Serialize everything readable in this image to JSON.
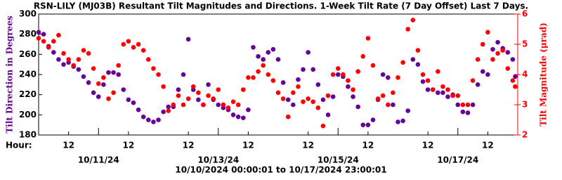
{
  "chart_data": {
    "type": "scatter",
    "title": "RSN-LILY (MJ03B) Resultant Tilt Magnitudes and Directions. 1-Week Tilt Rate (7 Day Offset) Last 7 Days.",
    "xlabel": "Hour:",
    "ylabel": "Tilt Direction in Degrees",
    "y2label": "Tilt Magnitude (μrad)",
    "footer": "10/10/2024 00:00:01 to 10/17/2024 23:00:01",
    "xlim": [
      0,
      192
    ],
    "xticks": [
      {
        "value": 12,
        "label": "12"
      },
      {
        "value": 36,
        "label": "12"
      },
      {
        "value": 60,
        "label": "12"
      },
      {
        "value": 84,
        "label": "12"
      },
      {
        "value": 108,
        "label": "12"
      },
      {
        "value": 132,
        "label": "12"
      },
      {
        "value": 156,
        "label": "12"
      },
      {
        "value": 180,
        "label": "12"
      }
    ],
    "xdateticks": [
      {
        "value": 24,
        "label": "10/11/24"
      },
      {
        "value": 72,
        "label": "10/13/24"
      },
      {
        "value": 120,
        "label": "10/15/24"
      },
      {
        "value": 168,
        "label": "10/17/24"
      }
    ],
    "ylim": [
      180,
      300
    ],
    "yticks": [
      180,
      200,
      220,
      240,
      260,
      280,
      300
    ],
    "y2lim": [
      2,
      6
    ],
    "y2ticks": [
      2,
      3,
      4,
      5,
      6
    ],
    "x": [
      0,
      2,
      4,
      6,
      8,
      10,
      12,
      14,
      16,
      18,
      20,
      22,
      24,
      26,
      28,
      30,
      32,
      34,
      36,
      38,
      40,
      42,
      44,
      46,
      48,
      50,
      52,
      54,
      56,
      58,
      60,
      62,
      64,
      66,
      68,
      70,
      72,
      74,
      76,
      78,
      80,
      82,
      84,
      86,
      88,
      90,
      92,
      94,
      96,
      98,
      100,
      102,
      104,
      106,
      108,
      110,
      112,
      114,
      116,
      118,
      120,
      122,
      124,
      126,
      128,
      130,
      132,
      134,
      136,
      138,
      140,
      142,
      144,
      146,
      148,
      150,
      152,
      154,
      156,
      158,
      160,
      162,
      164,
      166,
      168,
      170,
      172,
      174,
      176,
      178,
      180,
      182,
      184,
      186,
      188,
      190,
      191
    ],
    "series": [
      {
        "name": "Tilt Direction",
        "color": "#660099",
        "values": [
          282,
          280,
          268,
          262,
          255,
          250,
          252,
          248,
          245,
          238,
          232,
          222,
          218,
          230,
          242,
          242,
          240,
          225,
          215,
          212,
          205,
          198,
          195,
          193,
          195,
          203,
          208,
          208,
          225,
          240,
          275,
          225,
          215,
          210,
          230,
          215,
          210,
          207,
          205,
          200,
          198,
          197,
          205,
          267,
          258,
          255,
          262,
          265,
          255,
          232,
          215,
          210,
          235,
          245,
          262,
          245,
          230,
          215,
          200,
          218,
          240,
          238,
          228,
          218,
          208,
          190,
          190,
          195,
          215,
          240,
          237,
          210,
          193,
          194,
          204,
          255,
          250,
          233,
          225,
          225,
          222,
          222,
          218,
          220,
          210,
          203,
          202,
          210,
          230,
          243,
          240,
          265,
          272,
          266,
          262,
          255,
          238
        ]
      },
      {
        "name": "Tilt Magnitude",
        "color": "#ff0000",
        "axis": "y2",
        "values": [
          5.2,
          5.1,
          4.9,
          5.1,
          5.3,
          4.7,
          4.5,
          4.3,
          4.5,
          4.8,
          4.7,
          4.2,
          3.7,
          3.9,
          3.2,
          3.4,
          4.3,
          5.0,
          5.1,
          4.9,
          5.0,
          4.8,
          4.5,
          4.2,
          4.0,
          3.6,
          2.8,
          3.0,
          3.3,
          3.0,
          3.2,
          3.6,
          3.4,
          3.0,
          3.3,
          3.2,
          3.5,
          3.0,
          2.9,
          3.1,
          3.0,
          3.5,
          3.9,
          3.9,
          4.1,
          4.3,
          4.0,
          3.8,
          3.4,
          3.2,
          2.6,
          3.4,
          3.6,
          3.1,
          3.2,
          3.1,
          2.9,
          2.3,
          3.3,
          4.0,
          4.2,
          4.0,
          3.8,
          3.5,
          4.1,
          4.6,
          5.2,
          4.3,
          3.2,
          3.3,
          3.0,
          3.4,
          3.9,
          4.4,
          5.5,
          5.8,
          4.8,
          4.0,
          3.8,
          3.5,
          4.1,
          3.6,
          3.5,
          3.3,
          3.3,
          3.0,
          3.0,
          3.8,
          4.5,
          5.0,
          5.4,
          4.5,
          4.7,
          4.8,
          4.2,
          3.8,
          3.6
        ]
      }
    ]
  }
}
